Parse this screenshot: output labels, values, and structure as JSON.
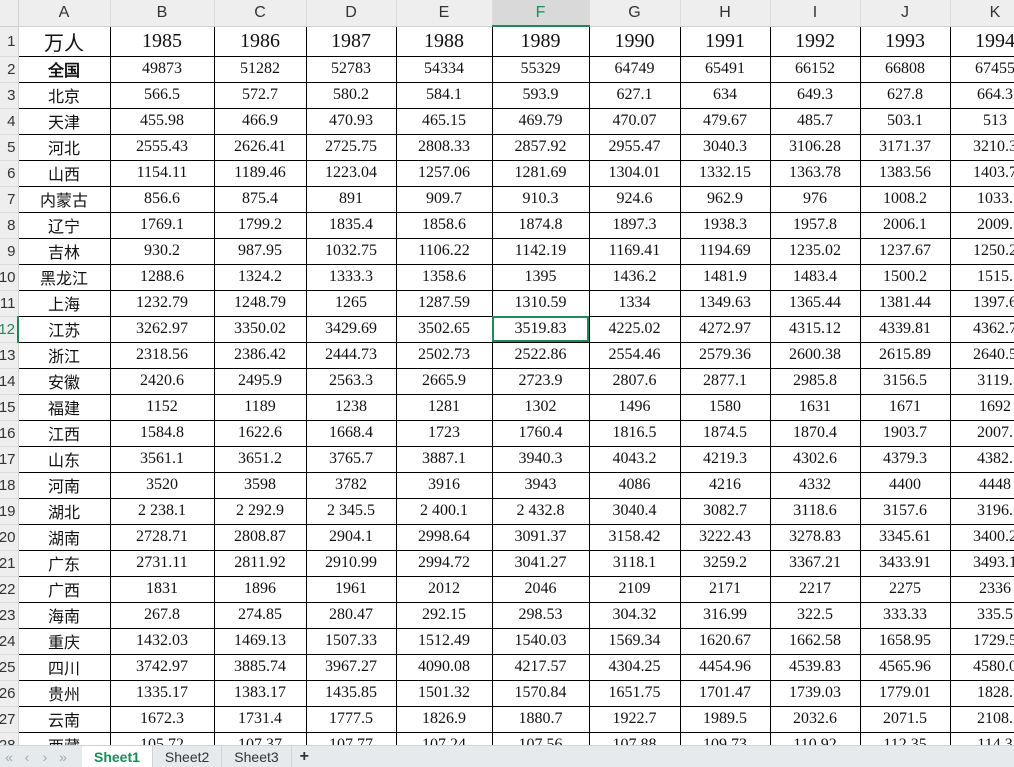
{
  "columns": [
    "A",
    "B",
    "C",
    "D",
    "E",
    "F",
    "G",
    "H",
    "I",
    "J",
    "K"
  ],
  "selected_cell": {
    "column": "F",
    "row": 12,
    "value": "3519.83"
  },
  "accent_color": "#1e8a5a",
  "rows": [
    {
      "num": "1",
      "cells": [
        "万人",
        "1985",
        "1986",
        "1987",
        "1988",
        "1989",
        "1990",
        "1991",
        "1992",
        "1993",
        "1994"
      ]
    },
    {
      "num": "2",
      "cells": [
        "全国",
        "49873",
        "51282",
        "52783",
        "54334",
        "55329",
        "64749",
        "65491",
        "66152",
        "66808",
        "67455"
      ]
    },
    {
      "num": "3",
      "cells": [
        "北京",
        "566.5",
        "572.7",
        "580.2",
        "584.1",
        "593.9",
        "627.1",
        "634",
        "649.3",
        "627.8",
        "664.3"
      ]
    },
    {
      "num": "4",
      "cells": [
        "天津",
        "455.98",
        "466.9",
        "470.93",
        "465.15",
        "469.79",
        "470.07",
        "479.67",
        "485.7",
        "503.1",
        "513"
      ]
    },
    {
      "num": "5",
      "cells": [
        "河北",
        "2555.43",
        "2626.41",
        "2725.75",
        "2808.33",
        "2857.92",
        "2955.47",
        "3040.3",
        "3106.28",
        "3171.37",
        "3210.3"
      ]
    },
    {
      "num": "6",
      "cells": [
        "山西",
        "1154.11",
        "1189.46",
        "1223.04",
        "1257.06",
        "1281.69",
        "1304.01",
        "1332.15",
        "1363.78",
        "1383.56",
        "1403.7"
      ]
    },
    {
      "num": "7",
      "cells": [
        "内蒙古",
        "856.6",
        "875.4",
        "891",
        "909.7",
        "910.3",
        "924.6",
        "962.9",
        "976",
        "1008.2",
        "1033."
      ]
    },
    {
      "num": "8",
      "cells": [
        "辽宁",
        "1769.1",
        "1799.2",
        "1835.4",
        "1858.6",
        "1874.8",
        "1897.3",
        "1938.3",
        "1957.8",
        "2006.1",
        "2009."
      ]
    },
    {
      "num": "9",
      "cells": [
        "吉林",
        "930.2",
        "987.95",
        "1032.75",
        "1106.22",
        "1142.19",
        "1169.41",
        "1194.69",
        "1235.02",
        "1237.67",
        "1250.2"
      ]
    },
    {
      "num": "10",
      "cells": [
        "黑龙江",
        "1288.6",
        "1324.2",
        "1333.3",
        "1358.6",
        "1395",
        "1436.2",
        "1481.9",
        "1483.4",
        "1500.2",
        "1515."
      ]
    },
    {
      "num": "11",
      "cells": [
        "上海",
        "1232.79",
        "1248.79",
        "1265",
        "1287.59",
        "1310.59",
        "1334",
        "1349.63",
        "1365.44",
        "1381.44",
        "1397.6"
      ]
    },
    {
      "num": "12",
      "cells": [
        "江苏",
        "3262.97",
        "3350.02",
        "3429.69",
        "3502.65",
        "3519.83",
        "4225.02",
        "4272.97",
        "4315.12",
        "4339.81",
        "4362.7"
      ]
    },
    {
      "num": "13",
      "cells": [
        "浙江",
        "2318.56",
        "2386.42",
        "2444.73",
        "2502.73",
        "2522.86",
        "2554.46",
        "2579.36",
        "2600.38",
        "2615.89",
        "2640.5"
      ]
    },
    {
      "num": "14",
      "cells": [
        "安徽",
        "2420.6",
        "2495.9",
        "2563.3",
        "2665.9",
        "2723.9",
        "2807.6",
        "2877.1",
        "2985.8",
        "3156.5",
        "3119."
      ]
    },
    {
      "num": "15",
      "cells": [
        "福建",
        "1152",
        "1189",
        "1238",
        "1281",
        "1302",
        "1496",
        "1580",
        "1631",
        "1671",
        "1692"
      ]
    },
    {
      "num": "16",
      "cells": [
        "江西",
        "1584.8",
        "1622.6",
        "1668.4",
        "1723",
        "1760.4",
        "1816.5",
        "1874.5",
        "1870.4",
        "1903.7",
        "2007."
      ]
    },
    {
      "num": "17",
      "cells": [
        "山东",
        "3561.1",
        "3651.2",
        "3765.7",
        "3887.1",
        "3940.3",
        "4043.2",
        "4219.3",
        "4302.6",
        "4379.3",
        "4382."
      ]
    },
    {
      "num": "18",
      "cells": [
        "河南",
        "3520",
        "3598",
        "3782",
        "3916",
        "3943",
        "4086",
        "4216",
        "4332",
        "4400",
        "4448"
      ]
    },
    {
      "num": "19",
      "cells": [
        "湖北",
        "2 238.1",
        "2 292.9",
        "2 345.5",
        "2 400.1",
        "2 432.8",
        "3040.4",
        "3082.7",
        "3118.6",
        "3157.6",
        "3196."
      ]
    },
    {
      "num": "20",
      "cells": [
        "湖南",
        "2728.71",
        "2808.87",
        "2904.1",
        "2998.64",
        "3091.37",
        "3158.42",
        "3222.43",
        "3278.83",
        "3345.61",
        "3400.2"
      ]
    },
    {
      "num": "21",
      "cells": [
        "广东",
        "2731.11",
        "2811.92",
        "2910.99",
        "2994.72",
        "3041.27",
        "3118.1",
        "3259.2",
        "3367.21",
        "3433.91",
        "3493.1"
      ]
    },
    {
      "num": "22",
      "cells": [
        "广西",
        "1831",
        "1896",
        "1961",
        "2012",
        "2046",
        "2109",
        "2171",
        "2217",
        "2275",
        "2336"
      ]
    },
    {
      "num": "23",
      "cells": [
        "海南",
        "267.8",
        "274.85",
        "280.47",
        "292.15",
        "298.53",
        "304.32",
        "316.99",
        "322.5",
        "333.33",
        "335.5"
      ]
    },
    {
      "num": "24",
      "cells": [
        "重庆",
        "1432.03",
        "1469.13",
        "1507.33",
        "1512.49",
        "1540.03",
        "1569.34",
        "1620.67",
        "1662.58",
        "1658.95",
        "1729.5"
      ]
    },
    {
      "num": "25",
      "cells": [
        "四川",
        "3742.97",
        "3885.74",
        "3967.27",
        "4090.08",
        "4217.57",
        "4304.25",
        "4454.96",
        "4539.83",
        "4565.96",
        "4580.0"
      ]
    },
    {
      "num": "26",
      "cells": [
        "贵州",
        "1335.17",
        "1383.17",
        "1435.85",
        "1501.32",
        "1570.84",
        "1651.75",
        "1701.47",
        "1739.03",
        "1779.01",
        "1828."
      ]
    },
    {
      "num": "27",
      "cells": [
        "云南",
        "1672.3",
        "1731.4",
        "1777.5",
        "1826.9",
        "1880.7",
        "1922.7",
        "1989.5",
        "2032.6",
        "2071.5",
        "2108."
      ]
    },
    {
      "num": "28",
      "cells": [
        "西藏",
        "105.72",
        "107.37",
        "107.77",
        "107.24",
        "107.56",
        "107.88",
        "109.73",
        "110.92",
        "112.35",
        "114.3"
      ]
    }
  ],
  "sheet_tabs": {
    "nav": [
      "«",
      "‹",
      "›",
      "»"
    ],
    "tabs": [
      {
        "label": "Sheet1",
        "active": true
      },
      {
        "label": "Sheet2",
        "active": false
      },
      {
        "label": "Sheet3",
        "active": false
      }
    ],
    "add_label": "+"
  }
}
